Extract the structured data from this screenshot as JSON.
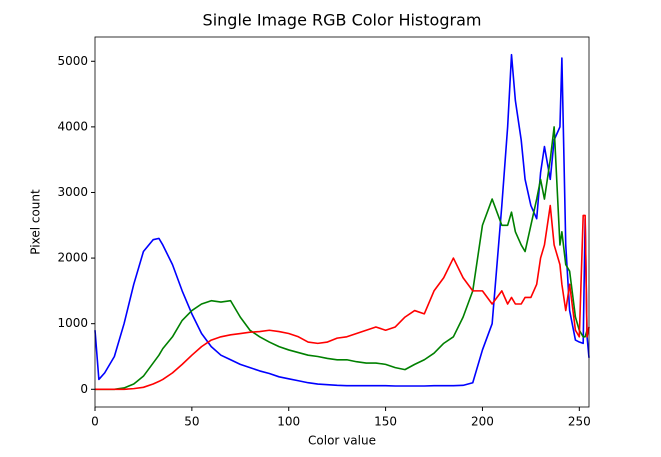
{
  "chart_data": {
    "type": "line",
    "title": "Single Image RGB Color Histogram",
    "x_label": "Color value",
    "y_label": "Pixel count",
    "x": [
      0,
      2,
      5,
      10,
      15,
      20,
      25,
      30,
      33,
      35,
      40,
      45,
      50,
      55,
      60,
      65,
      70,
      75,
      80,
      85,
      90,
      95,
      100,
      105,
      110,
      115,
      120,
      125,
      130,
      135,
      140,
      145,
      150,
      155,
      160,
      165,
      170,
      175,
      180,
      185,
      190,
      195,
      200,
      205,
      210,
      213,
      215,
      217,
      220,
      222,
      225,
      228,
      230,
      232,
      235,
      237,
      240,
      241,
      243,
      245,
      248,
      250,
      252,
      253,
      254,
      255
    ],
    "series": [
      {
        "color": "#0000ff",
        "values": [
          900,
          150,
          250,
          500,
          1000,
          1600,
          2100,
          2280,
          2300,
          2200,
          1900,
          1500,
          1150,
          850,
          650,
          520,
          450,
          380,
          330,
          280,
          240,
          190,
          160,
          130,
          100,
          80,
          70,
          60,
          55,
          55,
          55,
          55,
          55,
          50,
          50,
          50,
          50,
          55,
          55,
          55,
          60,
          100,
          600,
          1000,
          2800,
          4000,
          5100,
          4400,
          3800,
          3200,
          2800,
          2600,
          3300,
          3700,
          3200,
          3800,
          4000,
          5050,
          2200,
          1200,
          750,
          720,
          700,
          2600,
          800,
          480
        ]
      },
      {
        "color": "#008000",
        "values": [
          0,
          0,
          0,
          0,
          20,
          80,
          200,
          400,
          520,
          620,
          800,
          1050,
          1200,
          1300,
          1350,
          1330,
          1350,
          1100,
          900,
          800,
          720,
          650,
          600,
          560,
          520,
          500,
          470,
          450,
          450,
          420,
          400,
          400,
          380,
          330,
          300,
          380,
          450,
          550,
          700,
          800,
          1100,
          1500,
          2500,
          2900,
          2500,
          2500,
          2700,
          2400,
          2200,
          2100,
          2500,
          2900,
          3200,
          2900,
          3500,
          4000,
          2200,
          2400,
          1900,
          1800,
          1100,
          900,
          800,
          800,
          900,
          900
        ]
      },
      {
        "color": "#ff0000",
        "values": [
          0,
          0,
          0,
          0,
          0,
          10,
          30,
          80,
          120,
          150,
          250,
          380,
          520,
          650,
          750,
          800,
          830,
          850,
          870,
          880,
          900,
          880,
          850,
          800,
          720,
          700,
          720,
          780,
          800,
          850,
          900,
          950,
          900,
          950,
          1100,
          1200,
          1150,
          1500,
          1700,
          2000,
          1700,
          1500,
          1500,
          1300,
          1500,
          1300,
          1400,
          1300,
          1300,
          1400,
          1400,
          1600,
          2000,
          2200,
          2800,
          2200,
          1900,
          1600,
          1200,
          1600,
          900,
          800,
          2650,
          2650,
          800,
          950
        ]
      }
    ],
    "xlim": [
      0,
      255
    ],
    "ylim": [
      -270,
      5370
    ],
    "xticks": [
      0,
      50,
      100,
      150,
      200,
      250
    ],
    "yticks": [
      0,
      1000,
      2000,
      3000,
      4000,
      5000
    ],
    "grid": false
  }
}
